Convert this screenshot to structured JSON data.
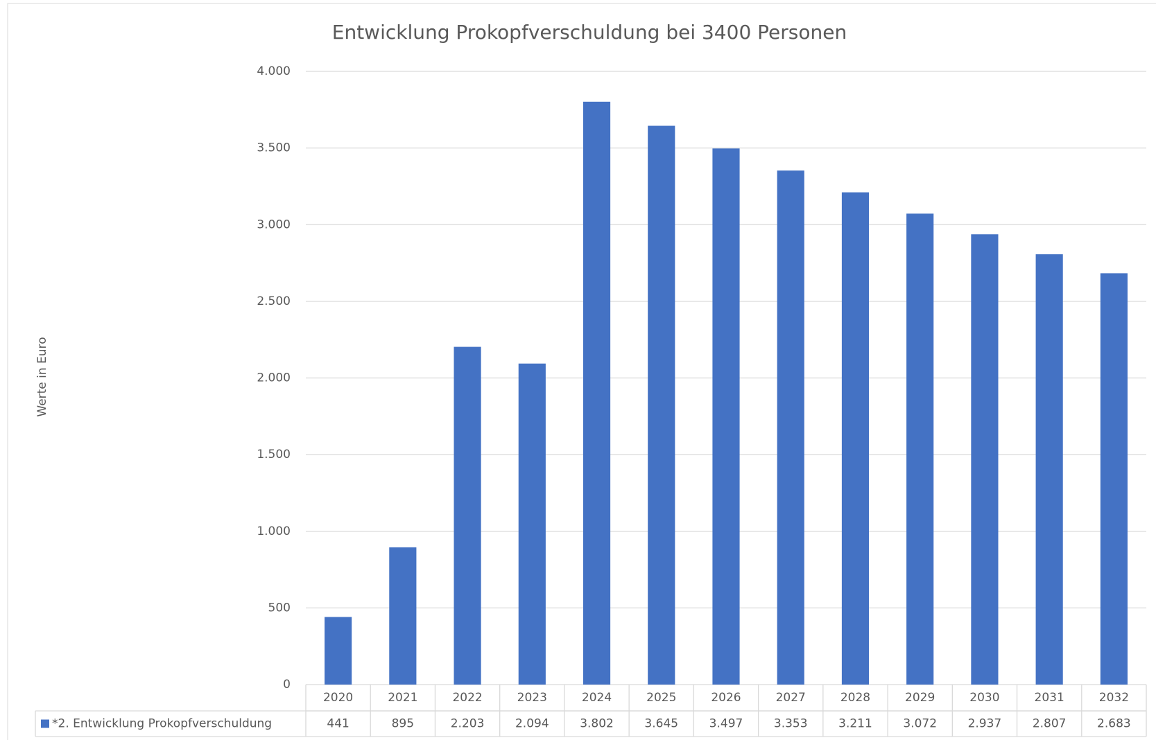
{
  "chart_data": {
    "type": "bar",
    "title": "Entwicklung Prokopfverschuldung  bei 3400 Personen",
    "y_label": "Werte in Euro",
    "categories": [
      "2020",
      "2021",
      "2022",
      "2023",
      "2024",
      "2025",
      "2026",
      "2027",
      "2028",
      "2029",
      "2030",
      "2031",
      "2032"
    ],
    "series": [
      {
        "name": "*2. Entwicklung Prokopfverschuldung",
        "color": "#4472c4",
        "values": [
          441,
          895,
          2203,
          2094,
          3802,
          3645,
          3497,
          3353,
          3211,
          3072,
          2937,
          2807,
          2683
        ],
        "value_labels": [
          "441",
          "895",
          "2.203",
          "2.094",
          "3.802",
          "3.645",
          "3.497",
          "3.353",
          "3.211",
          "3.072",
          "2.937",
          "2.807",
          "2.683"
        ]
      }
    ],
    "ylim": [
      0,
      4000
    ],
    "yticks": [
      0,
      500,
      {
        "value": 1000,
        "label": "1.000"
      },
      {
        "value": 1500,
        "label": "1.500"
      },
      {
        "value": 2000,
        "label": "2.000"
      },
      {
        "value": 2500,
        "label": "2.500"
      },
      {
        "value": 3000,
        "label": "3.000"
      },
      {
        "value": 3500,
        "label": "3.500"
      },
      {
        "value": 4000,
        "label": "4.000"
      }
    ],
    "grid": true
  }
}
